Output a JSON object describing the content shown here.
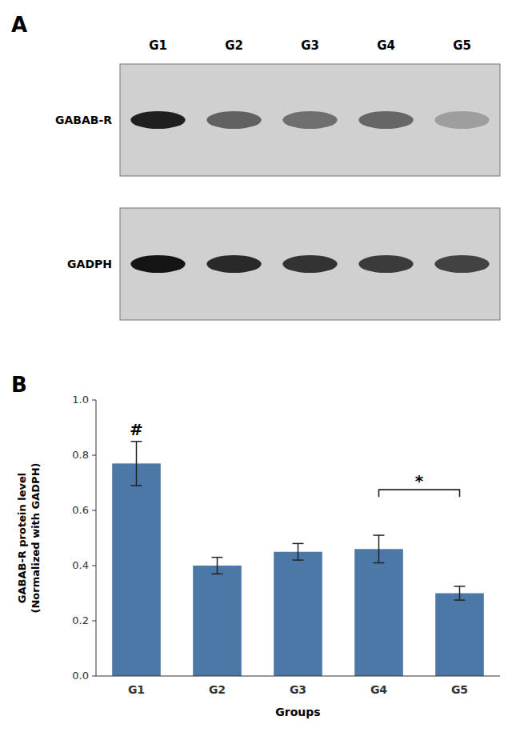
{
  "chart_data": [
    {
      "type": "blot",
      "title": "A",
      "categories": [
        "G1",
        "G2",
        "G3",
        "G4",
        "G5"
      ],
      "series": [
        {
          "name": "GABAB-R",
          "values": [
            0.12,
            0.38,
            0.43,
            0.4,
            0.62
          ]
        },
        {
          "name": "GADPH",
          "values": [
            0.08,
            0.16,
            0.2,
            0.23,
            0.26
          ]
        }
      ]
    },
    {
      "type": "bar",
      "title": "B",
      "categories": [
        "G1",
        "G2",
        "G3",
        "G4",
        "G5"
      ],
      "values": [
        0.77,
        0.4,
        0.45,
        0.46,
        0.3
      ],
      "errors": [
        0.08,
        0.03,
        0.03,
        0.05,
        0.025
      ],
      "xlabel": "Groups",
      "ylabel": "GABAB-R protein level\n(Normalized with GADPH)",
      "ylim": [
        0.0,
        1.0
      ],
      "yticks": [
        {
          "value": 0.0,
          "label": "0.0"
        },
        {
          "value": 0.2,
          "label": "0.2"
        },
        {
          "value": 0.4,
          "label": "0.4"
        },
        {
          "value": 0.6,
          "label": "0.6"
        },
        {
          "value": 0.8,
          "label": "0.8"
        },
        {
          "value": 1.0,
          "label": "1.0"
        }
      ],
      "grid": false,
      "annotations": [
        {
          "text": "#",
          "x": "G1"
        },
        {
          "text": "*",
          "x": [
            "G4",
            "G5"
          ],
          "y": 0.675
        }
      ]
    }
  ]
}
